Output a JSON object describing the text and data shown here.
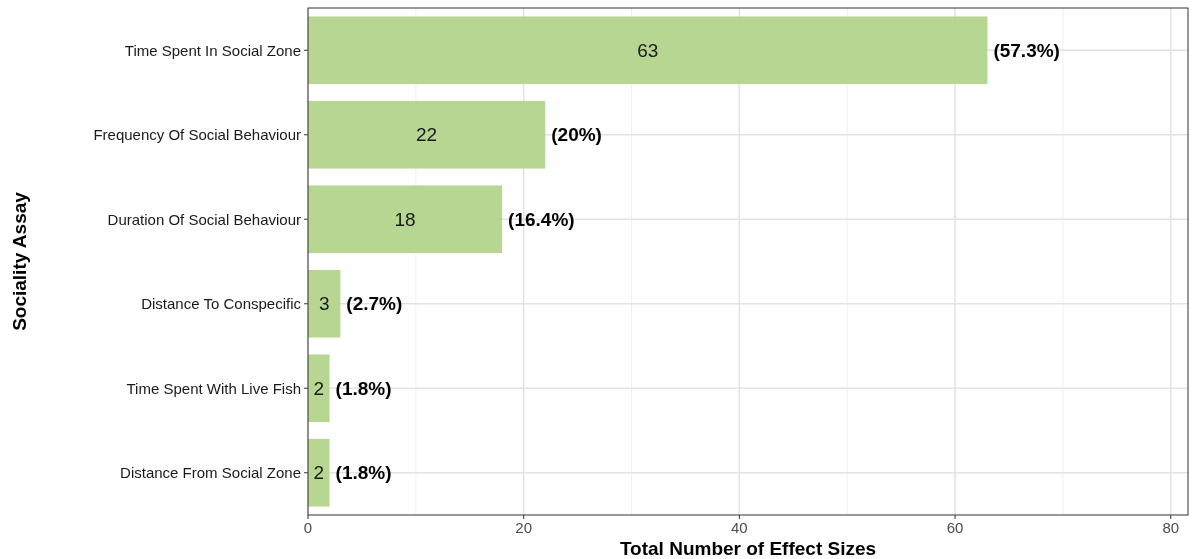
{
  "chart_data": {
    "type": "bar",
    "orientation": "horizontal",
    "xlabel": "Total Number of Effect Sizes",
    "ylabel": "Sociality Assay",
    "categories": [
      "Time Spent In Social Zone",
      "Frequency Of Social Behaviour",
      "Duration Of Social Behaviour",
      "Distance To Conspecific",
      "Time Spent With Live Fish",
      "Distance From Social Zone"
    ],
    "values": [
      63,
      22,
      18,
      3,
      2,
      2
    ],
    "value_labels": [
      "63",
      "22",
      "18",
      "3",
      "2",
      "2"
    ],
    "annotations": [
      {
        "text": "(57.3%)",
        "x": 63,
        "y": "Time Spent In Social Zone"
      },
      {
        "text": "(20%)",
        "x": 22,
        "y": "Frequency Of Social Behaviour"
      },
      {
        "text": "(16.4%)",
        "x": 18,
        "y": "Duration Of Social Behaviour"
      },
      {
        "text": "(2.7%)",
        "x": 3,
        "y": "Distance To Conspecific"
      },
      {
        "text": "(1.8%)",
        "x": 2,
        "y": "Time Spent With Live Fish"
      },
      {
        "text": "(1.8%)",
        "x": 2,
        "y": "Distance From Social Zone"
      }
    ],
    "color": "#b3d48c",
    "xlim": [
      0,
      81.6
    ],
    "xticks": [
      0,
      20,
      40,
      60,
      80
    ],
    "grid": true
  }
}
